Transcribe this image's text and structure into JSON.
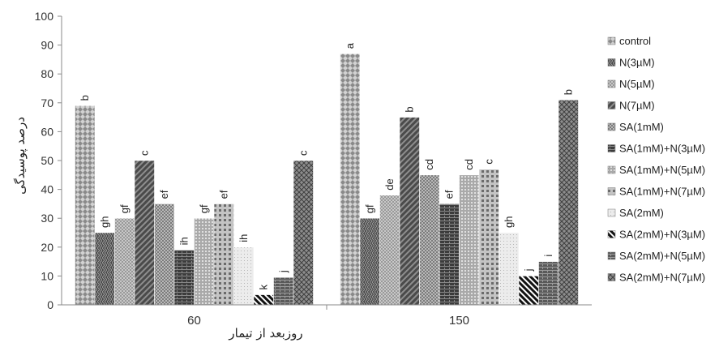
{
  "chart_data": {
    "type": "bar",
    "title": "",
    "xlabel": "روزبعد از تیمار",
    "ylabel": "درصد پوسیدگی",
    "ylim": [
      0,
      100
    ],
    "yticks": [
      0,
      10,
      20,
      30,
      40,
      50,
      60,
      70,
      80,
      90,
      100
    ],
    "grid": false,
    "legend_position": "right",
    "categories": [
      "60",
      "150"
    ],
    "series": [
      {
        "name": "control",
        "values": [
          69,
          87
        ],
        "labels": [
          "b",
          "a"
        ],
        "pattern": "p0"
      },
      {
        "name": "N(3µM)",
        "values": [
          25,
          30
        ],
        "labels": [
          "gh",
          "gf"
        ],
        "pattern": "p1"
      },
      {
        "name": "N(5µM)",
        "values": [
          30,
          38
        ],
        "labels": [
          "gf",
          "de"
        ],
        "pattern": "p2"
      },
      {
        "name": "N(7µM)",
        "values": [
          50,
          65
        ],
        "labels": [
          "c",
          "b"
        ],
        "pattern": "p3"
      },
      {
        "name": "SA(1mM)",
        "values": [
          35,
          45
        ],
        "labels": [
          "ef",
          "cd"
        ],
        "pattern": "p4"
      },
      {
        "name": "SA(1mM)+N(3µM)",
        "values": [
          19,
          35
        ],
        "labels": [
          "ih",
          "ef"
        ],
        "pattern": "p5"
      },
      {
        "name": "SA(1mM)+N(5µM)",
        "values": [
          30,
          45
        ],
        "labels": [
          "gf",
          "cd"
        ],
        "pattern": "p6"
      },
      {
        "name": "SA(1mM)+N(7µM)",
        "values": [
          35,
          47
        ],
        "labels": [
          "ef",
          "c"
        ],
        "pattern": "p7"
      },
      {
        "name": "SA(2mM)",
        "values": [
          20,
          25
        ],
        "labels": [
          "ih",
          "gh"
        ],
        "pattern": "p8"
      },
      {
        "name": "SA(2mM)+N(3µM)",
        "values": [
          3.5,
          10
        ],
        "labels": [
          "k",
          "j"
        ],
        "pattern": "p9"
      },
      {
        "name": "SA(2mM)+N(5µM)",
        "values": [
          9.5,
          15
        ],
        "labels": [
          "j",
          "i"
        ],
        "pattern": "p10"
      },
      {
        "name": "SA(2mM)+N(7µM)",
        "values": [
          50,
          71
        ],
        "labels": [
          "c",
          "b"
        ],
        "pattern": "p11"
      }
    ]
  }
}
